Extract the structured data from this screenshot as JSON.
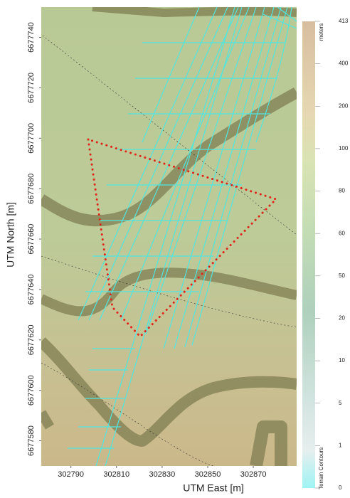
{
  "map": {
    "x_axis": {
      "label": "UTM East [m]",
      "xlim": [
        302777,
        302889
      ],
      "xticks": [
        302790,
        302810,
        302830,
        302850,
        302870
      ]
    },
    "y_axis": {
      "label": "UTM North [m]",
      "ylim": [
        6677570,
        6677752
      ],
      "yticks": [
        6677580,
        6677600,
        6677620,
        6677640,
        6677660,
        6677680,
        6677700,
        6677720,
        6677740
      ]
    },
    "colorbar": {
      "unit": "meters",
      "title": "Terrain Contours",
      "ticks": [
        413,
        400,
        200,
        100,
        80,
        60,
        50,
        20,
        10,
        5,
        1,
        0
      ]
    }
  }
}
